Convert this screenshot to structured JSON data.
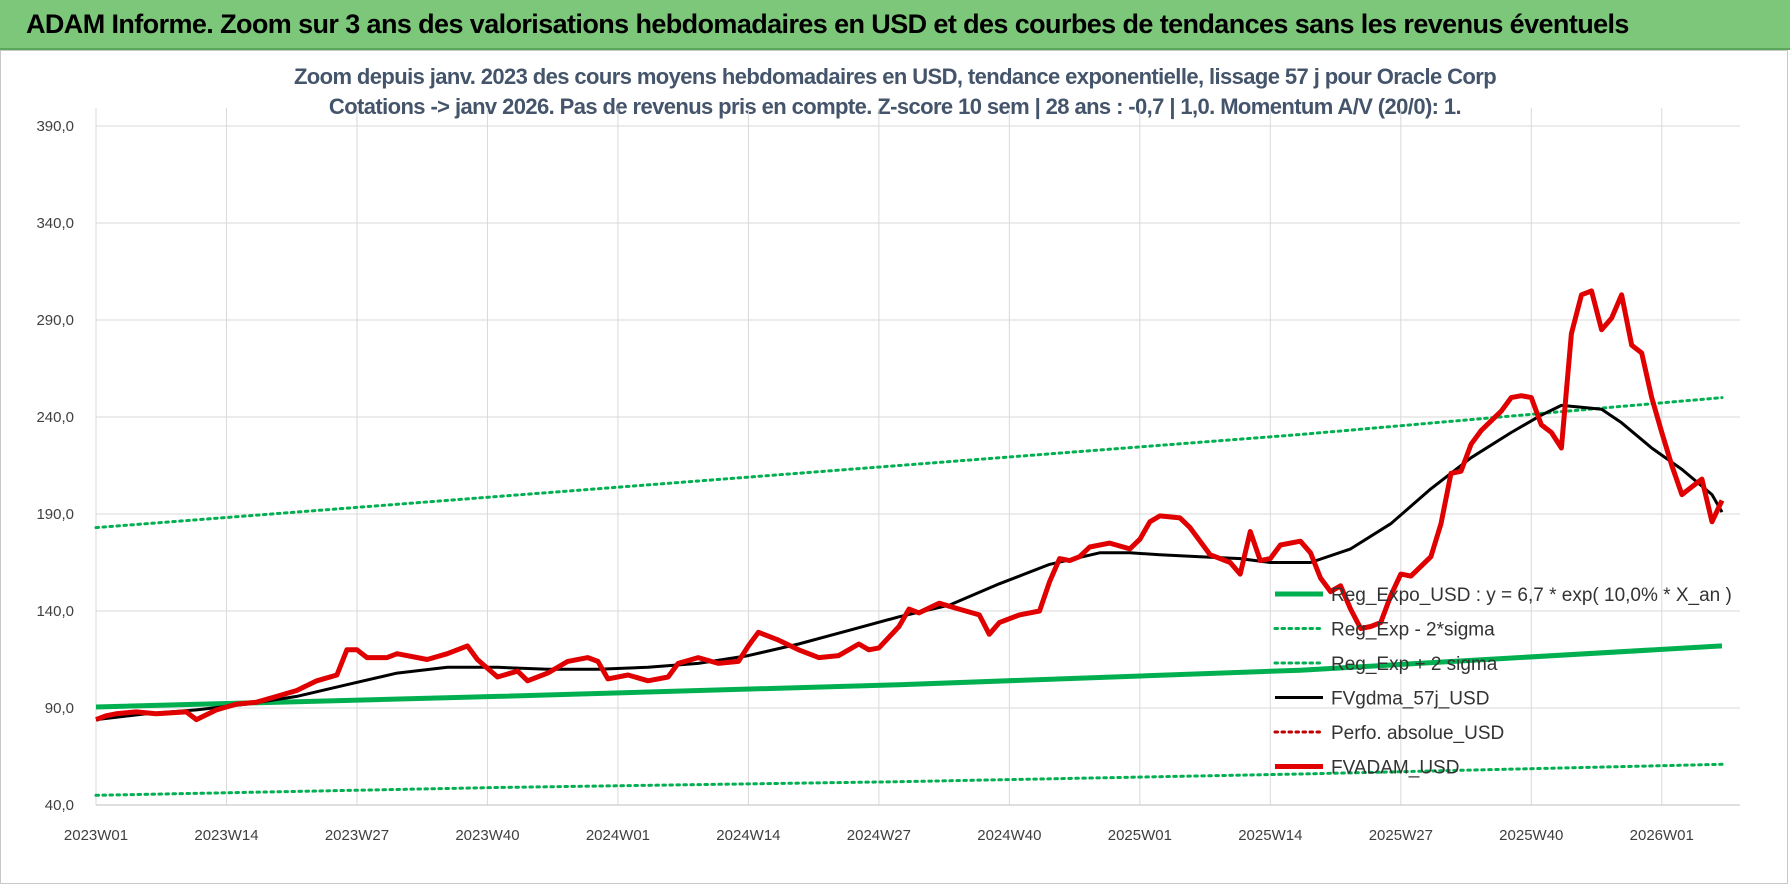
{
  "banner": {
    "title": "ADAM Informe. Zoom sur 3 ans des valorisations hebdomadaires en USD et des courbes de tendances sans les revenus éventuels"
  },
  "colors": {
    "banner_bg": "#7cc77a",
    "reg_expo": "#00b050",
    "sigma_lines": "#00b050",
    "fvgdma": "#000000",
    "perfo_absolue": "#c00000",
    "fvadam": "#e00000",
    "subtitle": "#44546a"
  },
  "chart_data": {
    "type": "line",
    "title_line1": "Zoom depuis janv. 2023 des cours moyens hebdomadaires en USD, tendance exponentielle, lissage 57 j pour Oracle Corp",
    "title_line2": "Cotations -> janv 2026. Pas de revenus pris en compte. Z-score 10 sem | 28 ans : -0,7 | 1,0. Momentum A/V (20/0): 1.",
    "xlabel": "",
    "ylabel": "",
    "ylim": [
      40,
      390
    ],
    "yticks": [
      "40,0",
      "90,0",
      "140,0",
      "190,0",
      "240,0",
      "290,0",
      "340,0",
      "390,0"
    ],
    "xticks": [
      "2023W01",
      "2023W14",
      "2023W27",
      "2023W40",
      "2024W01",
      "2024W14",
      "2024W27",
      "2024W40",
      "2025W01",
      "2025W14",
      "2025W27",
      "2025W40",
      "2026W01"
    ],
    "x_range_weeks": [
      0,
      162
    ],
    "grid": true,
    "legend_position": "right-middle, inside plot",
    "series": [
      {
        "name": "Reg_Expo_USD : y = 6,7 * exp( 10,0% *  X_an )",
        "style": "thick-solid",
        "points": [
          [
            0,
            90.5
          ],
          [
            40,
            96
          ],
          [
            80,
            102
          ],
          [
            120,
            109.5
          ],
          [
            162,
            122
          ]
        ]
      },
      {
        "name": "Reg_Exp - 2*sigma",
        "style": "dotted",
        "points": [
          [
            0,
            45
          ],
          [
            40,
            49
          ],
          [
            80,
            52
          ],
          [
            120,
            56
          ],
          [
            162,
            61
          ]
        ]
      },
      {
        "name": "Reg_Exp + 2 sigma",
        "style": "dotted",
        "points": [
          [
            0,
            183
          ],
          [
            40,
            199
          ],
          [
            80,
            215
          ],
          [
            120,
            231
          ],
          [
            162,
            250
          ]
        ]
      },
      {
        "name": "FVgdma_57j_USD",
        "style": "solid",
        "points": [
          [
            0,
            84
          ],
          [
            5,
            87
          ],
          [
            10,
            89
          ],
          [
            15,
            92
          ],
          [
            20,
            96
          ],
          [
            25,
            102
          ],
          [
            30,
            108
          ],
          [
            35,
            111
          ],
          [
            40,
            111
          ],
          [
            45,
            110
          ],
          [
            50,
            110
          ],
          [
            55,
            111
          ],
          [
            60,
            113
          ],
          [
            65,
            117
          ],
          [
            70,
            123
          ],
          [
            75,
            130
          ],
          [
            80,
            137
          ],
          [
            85,
            143
          ],
          [
            90,
            154
          ],
          [
            95,
            164
          ],
          [
            100,
            170
          ],
          [
            103,
            170
          ],
          [
            106,
            169
          ],
          [
            110,
            168
          ],
          [
            114,
            167
          ],
          [
            117,
            165
          ],
          [
            121,
            165
          ],
          [
            125,
            172
          ],
          [
            129,
            185
          ],
          [
            133,
            203
          ],
          [
            137,
            219
          ],
          [
            141,
            232
          ],
          [
            144,
            241
          ],
          [
            146,
            246
          ],
          [
            148,
            245
          ],
          [
            150,
            244
          ],
          [
            152,
            237
          ],
          [
            155,
            224
          ],
          [
            158,
            213
          ],
          [
            161,
            200
          ],
          [
            162,
            191
          ]
        ]
      },
      {
        "name": "Perfo. absolue_USD",
        "style": "dotted",
        "points": []
      },
      {
        "name": "FVADAM_USD",
        "style": "thick-solid",
        "points": [
          [
            0,
            84
          ],
          [
            1,
            86
          ],
          [
            2,
            87
          ],
          [
            4,
            88
          ],
          [
            6,
            87
          ],
          [
            9,
            88
          ],
          [
            10,
            84
          ],
          [
            12,
            89
          ],
          [
            14,
            92
          ],
          [
            16,
            93
          ],
          [
            18,
            96
          ],
          [
            20,
            99
          ],
          [
            22,
            104
          ],
          [
            24,
            107
          ],
          [
            25,
            120
          ],
          [
            26,
            120
          ],
          [
            27,
            116
          ],
          [
            29,
            116
          ],
          [
            30,
            118
          ],
          [
            33,
            115
          ],
          [
            35,
            118
          ],
          [
            37,
            122
          ],
          [
            38,
            115
          ],
          [
            40,
            106
          ],
          [
            42,
            109
          ],
          [
            43,
            104
          ],
          [
            45,
            108
          ],
          [
            47,
            114
          ],
          [
            49,
            116
          ],
          [
            50,
            114
          ],
          [
            51,
            105
          ],
          [
            53,
            107
          ],
          [
            55,
            104
          ],
          [
            57,
            106
          ],
          [
            58,
            113
          ],
          [
            60,
            116
          ],
          [
            62,
            113
          ],
          [
            64,
            114
          ],
          [
            65,
            122
          ],
          [
            66,
            129
          ],
          [
            68,
            125
          ],
          [
            70,
            120
          ],
          [
            72,
            116
          ],
          [
            74,
            117
          ],
          [
            76,
            123
          ],
          [
            77,
            120
          ],
          [
            78,
            121
          ],
          [
            80,
            132
          ],
          [
            81,
            141
          ],
          [
            82,
            139
          ],
          [
            84,
            144
          ],
          [
            86,
            141
          ],
          [
            88,
            138
          ],
          [
            89,
            128
          ],
          [
            90,
            134
          ],
          [
            92,
            138
          ],
          [
            94,
            140
          ],
          [
            95,
            155
          ],
          [
            96,
            167
          ],
          [
            97,
            166
          ],
          [
            98,
            168
          ],
          [
            99,
            173
          ],
          [
            101,
            175
          ],
          [
            103,
            172
          ],
          [
            104,
            177
          ],
          [
            105,
            186
          ],
          [
            106,
            189
          ],
          [
            108,
            188
          ],
          [
            109,
            183
          ],
          [
            110,
            176
          ],
          [
            111,
            169
          ],
          [
            113,
            165
          ],
          [
            114,
            159
          ],
          [
            115,
            181
          ],
          [
            116,
            166
          ],
          [
            117,
            167
          ],
          [
            118,
            174
          ],
          [
            120,
            176
          ],
          [
            121,
            170
          ],
          [
            122,
            157
          ],
          [
            123,
            150
          ],
          [
            124,
            153
          ],
          [
            125,
            141
          ],
          [
            126,
            131
          ],
          [
            127,
            132
          ],
          [
            128,
            134
          ],
          [
            129,
            148
          ],
          [
            130,
            159
          ],
          [
            131,
            158
          ],
          [
            133,
            168
          ],
          [
            134,
            185
          ],
          [
            135,
            211
          ],
          [
            136,
            212
          ],
          [
            137,
            226
          ],
          [
            138,
            233
          ],
          [
            140,
            243
          ],
          [
            141,
            250
          ],
          [
            142,
            251
          ],
          [
            143,
            250
          ],
          [
            144,
            236
          ],
          [
            145,
            232
          ],
          [
            146,
            224
          ],
          [
            147,
            283
          ],
          [
            148,
            303
          ],
          [
            149,
            305
          ],
          [
            150,
            285
          ],
          [
            151,
            291
          ],
          [
            152,
            303
          ],
          [
            153,
            277
          ],
          [
            154,
            273
          ],
          [
            155,
            250
          ],
          [
            156,
            232
          ],
          [
            157,
            215
          ],
          [
            158,
            200
          ],
          [
            159,
            204
          ],
          [
            160,
            208
          ],
          [
            161,
            186
          ],
          [
            162,
            197
          ]
        ]
      }
    ]
  }
}
